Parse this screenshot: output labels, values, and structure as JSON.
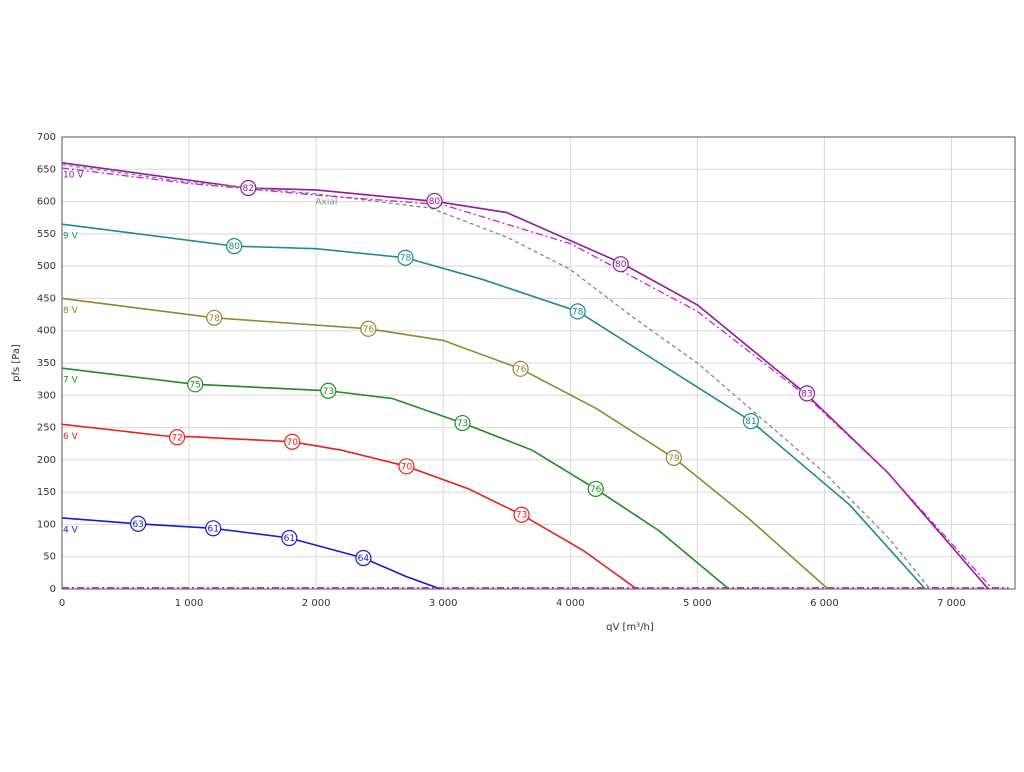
{
  "chart_data": {
    "type": "line",
    "xlabel": "qV [m³/h]",
    "ylabel": "pfs [Pa]",
    "xlim": [
      0,
      7500
    ],
    "ylim": [
      0,
      700
    ],
    "xticks": [
      0,
      {
        "value": 1000,
        "label": "1 000"
      },
      {
        "value": 2000,
        "label": "2 000"
      },
      {
        "value": 3000,
        "label": "3 000"
      },
      {
        "value": 4000,
        "label": "4 000"
      },
      {
        "value": 5000,
        "label": "5 000"
      },
      {
        "value": 6000,
        "label": "6 000"
      },
      {
        "value": 7000,
        "label": "7 000"
      }
    ],
    "yticks": [
      0,
      50,
      100,
      150,
      200,
      250,
      300,
      350,
      400,
      450,
      500,
      550,
      600,
      650,
      700
    ],
    "grid": true,
    "series": [
      {
        "name": "10 V",
        "color": "#8e1a9e",
        "style": "solid",
        "x": [
          0,
          1450,
          2000,
          2950,
          3500,
          4400,
          5000,
          5850,
          6500,
          7290
        ],
        "values": [
          660,
          621,
          618,
          600,
          583,
          505,
          440,
          303,
          180,
          0
        ],
        "markers": {
          "x": [
            1466,
            2931,
            4397,
            5863
          ],
          "y": [
            621,
            601,
            503,
            303
          ],
          "labels": [
            82,
            80,
            80,
            83
          ]
        }
      },
      {
        "name": "9 V",
        "color": "#1f8a8c",
        "style": "solid",
        "x": [
          0,
          1355,
          2000,
          2703,
          3300,
          4058,
          4700,
          5422,
          6200,
          6793
        ],
        "values": [
          565,
          531,
          527,
          513,
          480,
          430,
          350,
          260,
          130,
          0
        ],
        "markers": {
          "x": [
            1355,
            2703,
            4058,
            5422
          ],
          "y": [
            531,
            513,
            430,
            260
          ],
          "labels": [
            80,
            78,
            78,
            81
          ]
        }
      },
      {
        "name": "8 V",
        "color": "#8e8a2a",
        "style": "solid",
        "x": [
          0,
          1198,
          2411,
          3000,
          3609,
          4200,
          4815,
          5400,
          6028
        ],
        "values": [
          450,
          420,
          403,
          385,
          341,
          280,
          203,
          110,
          0
        ],
        "markers": {
          "x": [
            1198,
            2411,
            3609,
            4815
          ],
          "y": [
            420,
            403,
            341,
            203
          ],
          "labels": [
            78,
            76,
            76,
            79
          ]
        }
      },
      {
        "name": "7 V",
        "color": "#228b22",
        "style": "solid",
        "x": [
          0,
          1048,
          2096,
          2600,
          3152,
          3700,
          4200,
          4700,
          5248
        ],
        "values": [
          342,
          317,
          307,
          295,
          257,
          215,
          155,
          90,
          0
        ],
        "markers": {
          "x": [
            1048,
            2096,
            3152,
            4200
          ],
          "y": [
            317,
            307,
            257,
            155
          ],
          "labels": [
            75,
            73,
            73,
            76
          ]
        }
      },
      {
        "name": "6 V",
        "color": "#e8211f",
        "style": "solid",
        "x": [
          0,
          906,
          1000,
          1812,
          2200,
          2711,
          3200,
          3617,
          4100,
          4523
        ],
        "values": [
          255,
          235,
          236,
          228,
          215,
          190,
          155,
          115,
          60,
          0
        ],
        "markers": {
          "x": [
            906,
            1812,
            2711,
            3617
          ],
          "y": [
            235,
            228,
            190,
            115
          ],
          "labels": [
            72,
            70,
            70,
            73
          ]
        }
      },
      {
        "name": "4 V",
        "color": "#1a1acc",
        "style": "solid",
        "x": [
          0,
          599,
          1190,
          1789,
          2372,
          2700,
          2979
        ],
        "values": [
          110,
          101,
          94,
          79,
          48,
          20,
          0
        ],
        "markers": {
          "x": [
            599,
            1190,
            1789,
            2372
          ],
          "y": [
            101,
            94,
            79,
            48
          ],
          "labels": [
            63,
            61,
            61,
            64
          ]
        }
      },
      {
        "name": "Axial",
        "color": "#888888",
        "style": "dashed",
        "x": [
          0,
          1000,
          1994,
          2900,
          3500,
          4000,
          4500,
          5000,
          5500,
          6000,
          6500,
          6832
        ],
        "values": [
          657,
          630,
          612,
          590,
          545,
          495,
          420,
          350,
          265,
          180,
          80,
          0
        ]
      },
      {
        "color": "#cc22cc",
        "style": "dashdot",
        "x": [
          0,
          1000,
          2000,
          3000,
          4000,
          5000,
          5850,
          6500,
          7300
        ],
        "values": [
          652,
          628,
          610,
          595,
          535,
          430,
          300,
          180,
          5
        ]
      },
      {
        "color": "#cc22cc",
        "style": "dashdot",
        "x": [
          0,
          7450
        ],
        "values": [
          2,
          2
        ]
      }
    ]
  }
}
